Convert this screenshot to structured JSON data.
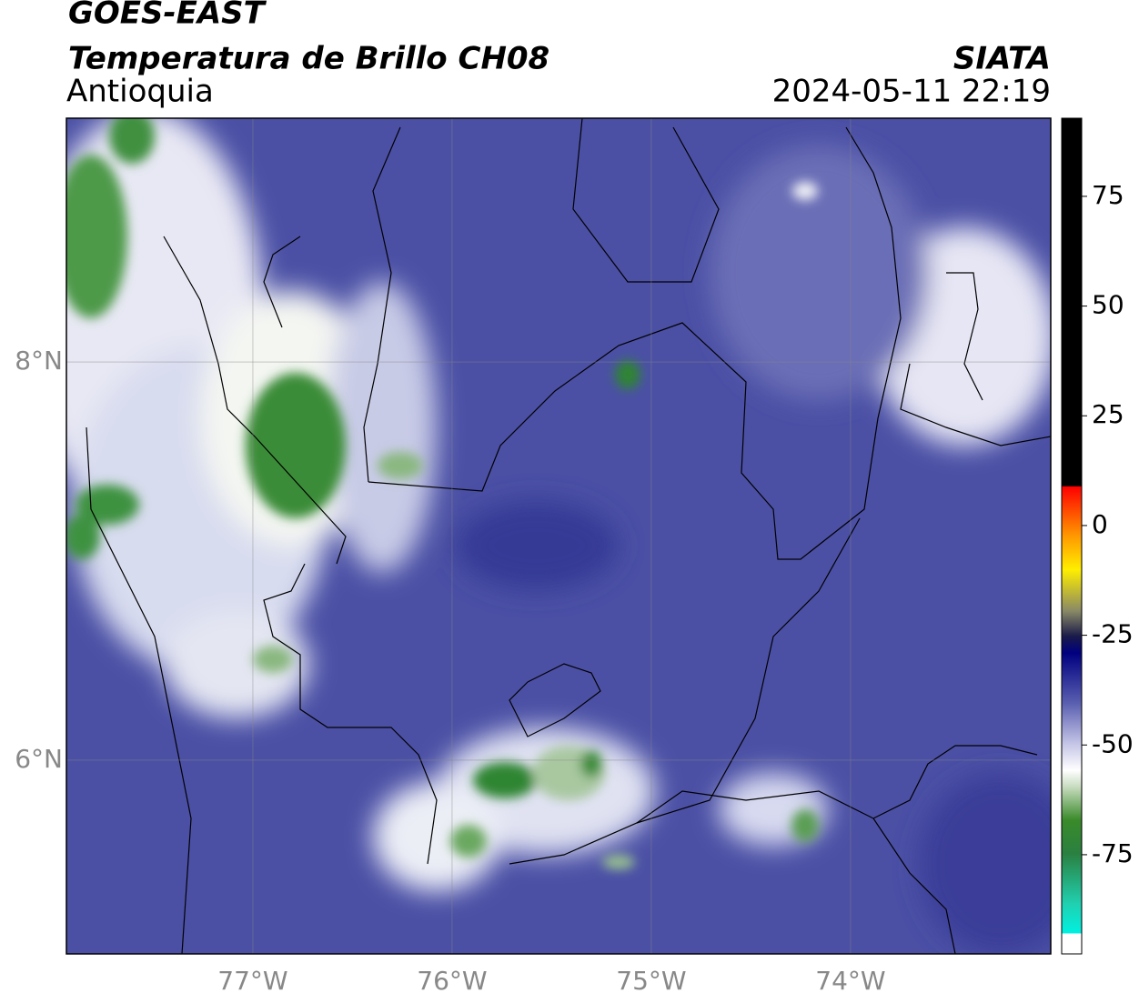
{
  "header": {
    "title": "GOES-EAST",
    "subtitle": "Temperatura de Brillo CH08",
    "region": "Antioquia",
    "source": "SIATA",
    "datetime": "2024-05-11 22:19"
  },
  "map": {
    "xlim": [
      -77.936,
      -72.995
    ],
    "ylim": [
      5.027,
      9.224
    ],
    "xticks": [
      {
        "value": -77,
        "label": "77°W"
      },
      {
        "value": -76,
        "label": "76°W"
      },
      {
        "value": -75,
        "label": "75°W"
      },
      {
        "value": -74,
        "label": "74°W"
      }
    ],
    "yticks": [
      {
        "value": 8,
        "label": "8°N"
      },
      {
        "value": 6,
        "label": "6°N"
      }
    ]
  },
  "colorbar": {
    "lim": [
      -97.6,
      92.8
    ],
    "ticks": [
      75,
      50,
      25,
      0,
      -25,
      -50,
      -75
    ]
  }
}
